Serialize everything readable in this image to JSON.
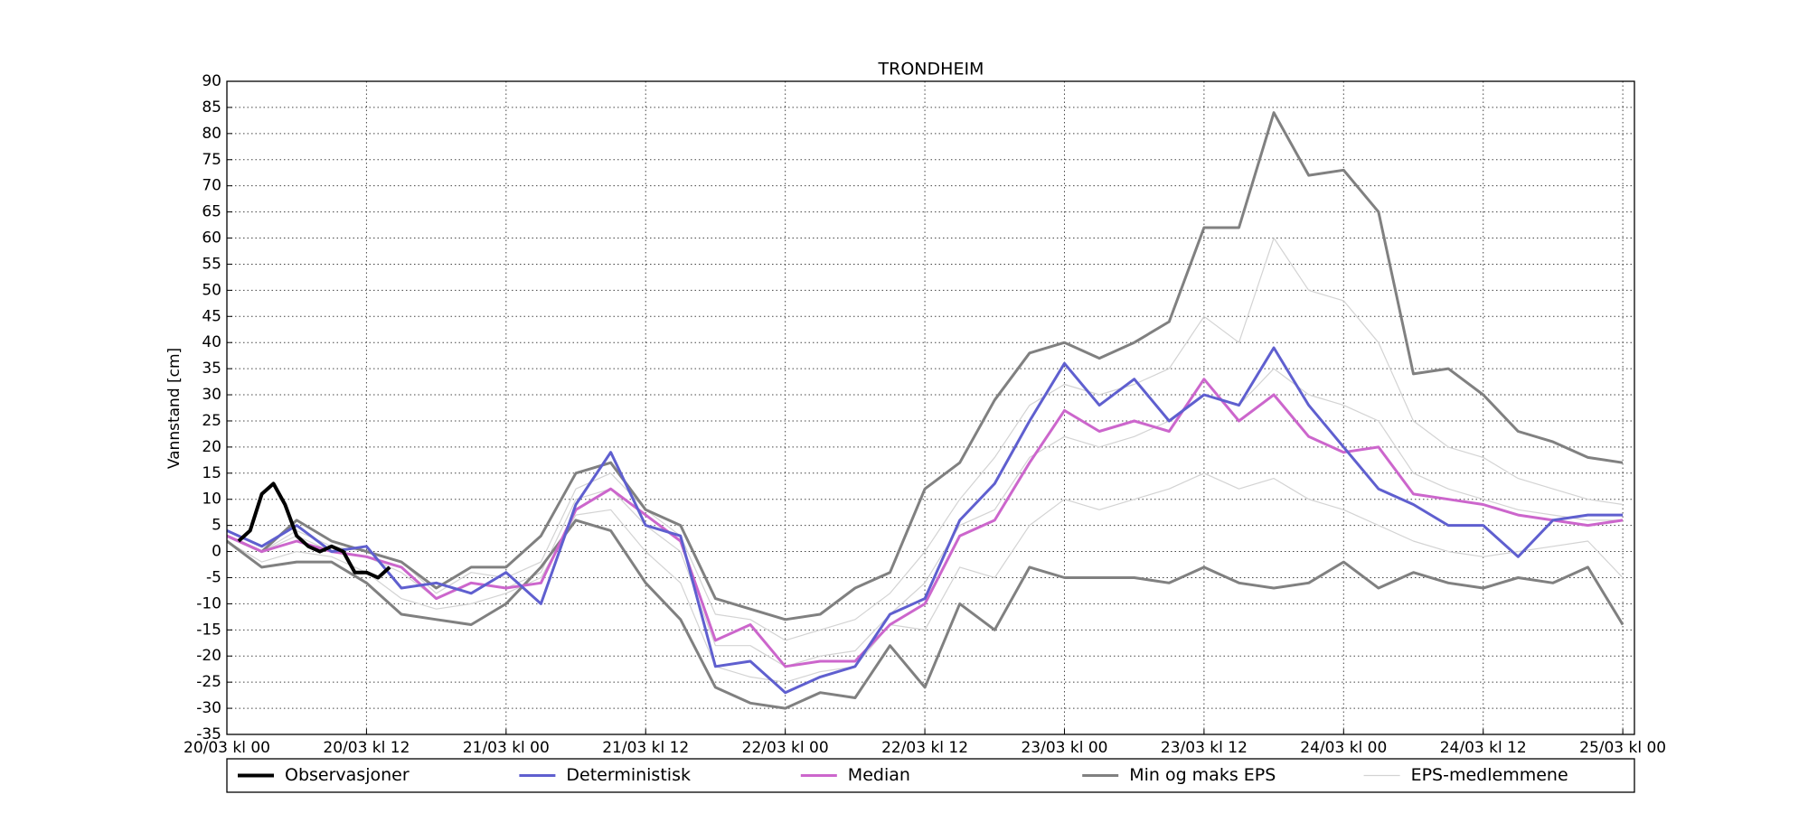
{
  "chart_data": {
    "type": "line",
    "title": "TRONDHEIM",
    "y_label": "Vannstand [cm]",
    "x": [
      0,
      3,
      6,
      9,
      12,
      15,
      18,
      21,
      24,
      27,
      30,
      33,
      36,
      39,
      42,
      45,
      48,
      51,
      54,
      57,
      60,
      63,
      66,
      69,
      72,
      75,
      78,
      81,
      84,
      87,
      90,
      93,
      96,
      99,
      102,
      105,
      108,
      111,
      114,
      117,
      120
    ],
    "xlim": [
      0,
      121
    ],
    "xticks": [
      {
        "value": 0,
        "label": "20/03 kl 00"
      },
      {
        "value": 12,
        "label": "20/03 kl 12"
      },
      {
        "value": 24,
        "label": "21/03 kl 00"
      },
      {
        "value": 36,
        "label": "21/03 kl 12"
      },
      {
        "value": 48,
        "label": "22/03 kl 00"
      },
      {
        "value": 60,
        "label": "22/03 kl 12"
      },
      {
        "value": 72,
        "label": "23/03 kl 00"
      },
      {
        "value": 84,
        "label": "23/03 kl 12"
      },
      {
        "value": 96,
        "label": "24/03 kl 00"
      },
      {
        "value": 108,
        "label": "24/03 kl 12"
      },
      {
        "value": 120,
        "label": "25/03 kl 00"
      }
    ],
    "ylim": [
      -35,
      90
    ],
    "yticks": [
      -35,
      -30,
      -25,
      -20,
      -15,
      -10,
      -5,
      0,
      5,
      10,
      15,
      20,
      25,
      30,
      35,
      40,
      45,
      50,
      55,
      60,
      65,
      70,
      75,
      80,
      85,
      90
    ],
    "grid": true,
    "legend": "bottom",
    "series": [
      {
        "name": "Observasjoner",
        "color": "#000000",
        "x": [
          1,
          2,
          3,
          4,
          5,
          6,
          7,
          8,
          9,
          10,
          11,
          12,
          13,
          14
        ],
        "values": [
          2,
          4,
          11,
          13,
          9,
          3,
          1,
          0,
          1,
          0,
          -4,
          -4,
          -5,
          -3
        ]
      },
      {
        "name": "Deterministisk",
        "color": "#5f5fcf",
        "values": [
          4,
          1,
          5,
          0,
          1,
          -7,
          -6,
          -8,
          -4,
          -10,
          9,
          19,
          5,
          3,
          -22,
          -21,
          -27,
          -24,
          -22,
          -12,
          -9,
          6,
          13,
          25,
          36,
          28,
          33,
          25,
          30,
          28,
          39,
          28,
          20,
          12,
          9,
          5,
          5,
          -1,
          6,
          7,
          7
        ]
      },
      {
        "name": "Median",
        "color": "#cc66cc",
        "values": [
          3,
          0,
          2,
          0,
          -1,
          -3,
          -9,
          -6,
          -7,
          -6,
          8,
          12,
          7,
          2,
          -17,
          -14,
          -22,
          -21,
          -21,
          -14,
          -10,
          3,
          6,
          17,
          27,
          23,
          25,
          23,
          33,
          25,
          30,
          22,
          19,
          20,
          11,
          10,
          9,
          7,
          6,
          5,
          6
        ]
      },
      {
        "name": "Min og maks EPS",
        "color": "#808080",
        "min": [
          2,
          -3,
          -2,
          -2,
          -6,
          -12,
          -13,
          -14,
          -10,
          -3,
          6,
          4,
          -6,
          -13,
          -26,
          -29,
          -30,
          -27,
          -28,
          -18,
          -26,
          -10,
          -15,
          -3,
          -5,
          -5,
          -5,
          -6,
          -3,
          -6,
          -7,
          -6,
          -2,
          -7,
          -4,
          -6,
          -7,
          -5,
          -6,
          -3,
          -14
        ],
        "max": [
          3,
          0,
          6,
          2,
          0,
          -2,
          -7,
          -3,
          -3,
          3,
          15,
          17,
          8,
          5,
          -9,
          -11,
          -13,
          -12,
          -7,
          -4,
          12,
          17,
          29,
          38,
          40,
          37,
          40,
          44,
          62,
          62,
          84,
          72,
          73,
          65,
          34,
          35,
          30,
          23,
          21,
          18,
          17
        ]
      },
      {
        "name": "EPS-medlemmene",
        "color": "#d3d3d3",
        "members": [
          [
            3,
            0,
            4,
            1,
            0,
            -2,
            -8,
            -4,
            -5,
            -2,
            12,
            15,
            8,
            3,
            -12,
            -13,
            -17,
            -15,
            -13,
            -8,
            0,
            10,
            18,
            28,
            32,
            30,
            32,
            35,
            45,
            40,
            60,
            50,
            48,
            40,
            25,
            20,
            18,
            14,
            12,
            10,
            9
          ],
          [
            2,
            -2,
            0,
            -1,
            -4,
            -9,
            -11,
            -10,
            -8,
            -5,
            7,
            8,
            0,
            -6,
            -22,
            -24,
            -25,
            -23,
            -22,
            -14,
            -15,
            -3,
            -5,
            5,
            10,
            8,
            10,
            12,
            15,
            12,
            14,
            10,
            8,
            5,
            2,
            0,
            -1,
            0,
            1,
            2,
            -5
          ],
          [
            3,
            0,
            3,
            0,
            -1,
            -4,
            -9,
            -6,
            -7,
            -4,
            10,
            12,
            5,
            0,
            -18,
            -18,
            -22,
            -20,
            -19,
            -12,
            -6,
            5,
            8,
            18,
            22,
            20,
            22,
            25,
            30,
            28,
            35,
            30,
            28,
            25,
            15,
            12,
            10,
            8,
            7,
            6,
            6
          ]
        ]
      }
    ]
  }
}
